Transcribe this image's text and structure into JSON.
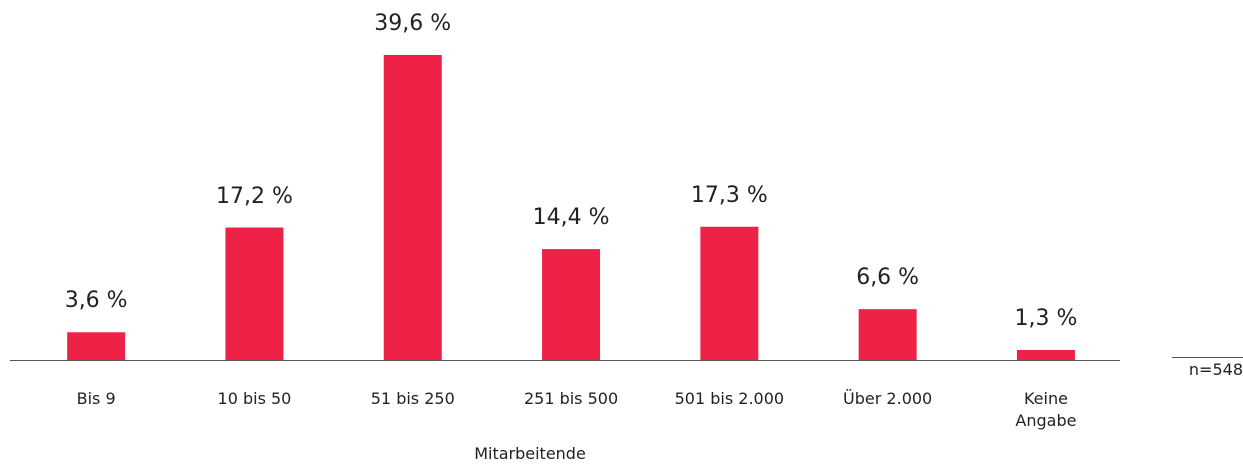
{
  "chart_data": {
    "type": "bar",
    "categories": [
      "Bis 9",
      "10 bis 50",
      "51 bis 250",
      "251 bis 500",
      "501 bis 2.000",
      "Über 2.000",
      "Keine Angabe"
    ],
    "values": [
      3.6,
      17.2,
      39.6,
      14.4,
      17.3,
      6.6,
      1.3
    ],
    "value_labels": [
      "3,6 %",
      "17,2 %",
      "39,6 %",
      "14,4 %",
      "17,3 %",
      "6,6 %",
      "1,3 %"
    ],
    "color": "#ee2147",
    "xlabel": "Mitarbeitende",
    "note": "n=548"
  }
}
